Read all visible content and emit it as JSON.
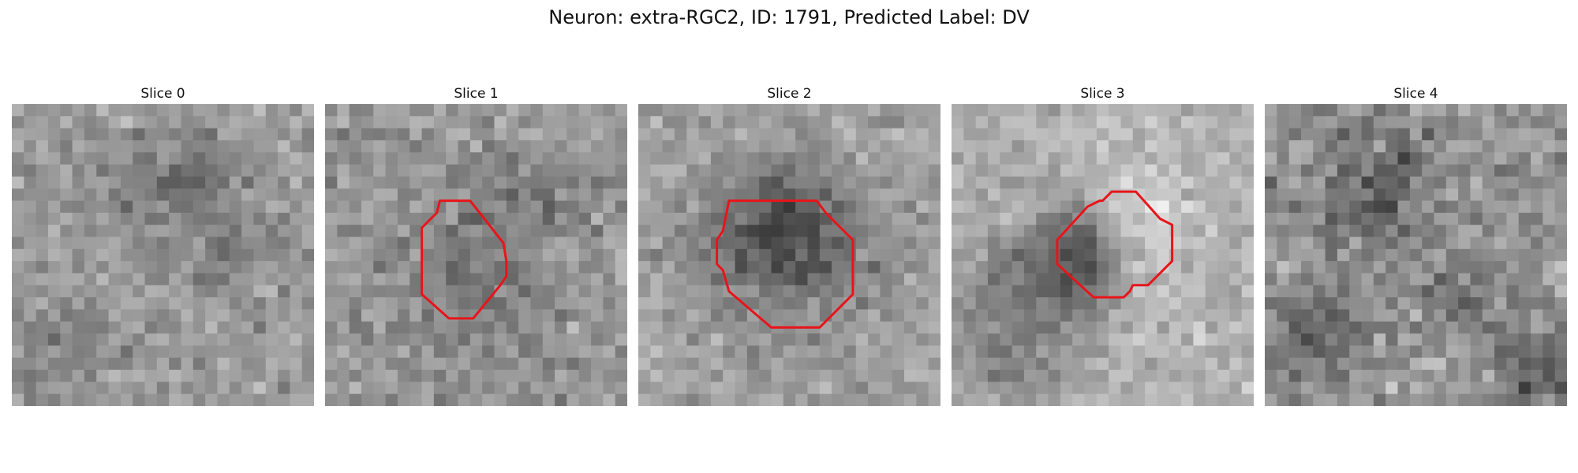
{
  "figure": {
    "title": "Neuron: extra-RGC2, ID: 1791, Predicted Label: DV",
    "contour_color": "#e8141a"
  },
  "panels": [
    {
      "label": "Slice 0",
      "has_contour": false
    },
    {
      "label": "Slice 1",
      "has_contour": true
    },
    {
      "label": "Slice 2",
      "has_contour": true
    },
    {
      "label": "Slice 3",
      "has_contour": true
    },
    {
      "label": "Slice 4",
      "has_contour": false
    }
  ]
}
